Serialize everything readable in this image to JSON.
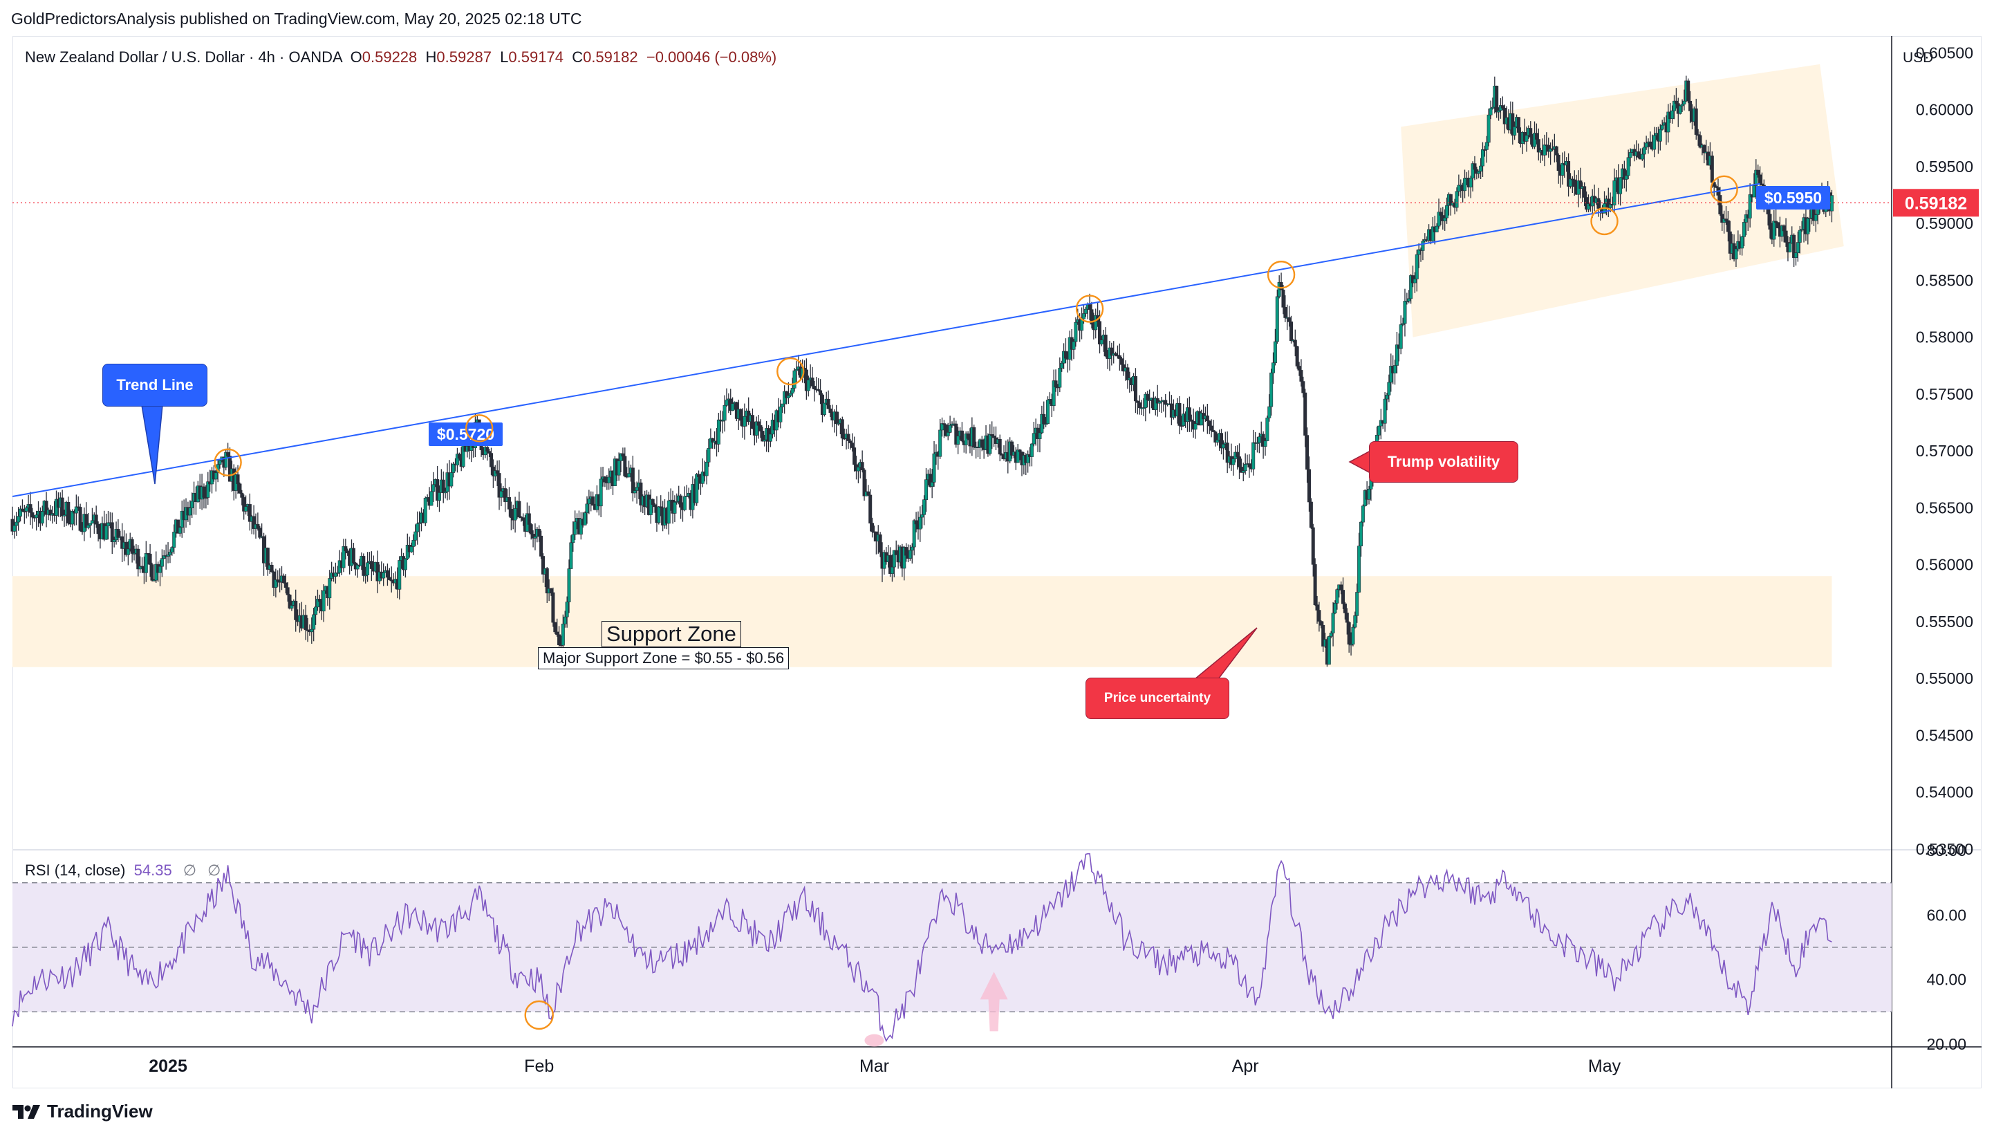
{
  "publisher": "GoldPredictorsAnalysis published on TradingView.com, May 20, 2025 02:18 UTC",
  "symbol": {
    "name": "New Zealand Dollar / U.S. Dollar · 4h · OANDA",
    "open_label": "O",
    "open": "0.59228",
    "high_label": "H",
    "high": "0.59287",
    "low_label": "L",
    "low": "0.59174",
    "close_label": "C",
    "close": "0.59182",
    "change": "−0.00046 (−0.08%)"
  },
  "currency": "USD",
  "branding": "TradingView",
  "colors": {
    "up": "#089981",
    "down": "#f23645",
    "candle_wick": "#2a2e39",
    "trend_line": "#2962ff",
    "rsi_line": "#7e57c2",
    "rsi_band": "#ede7f6",
    "zone_fill": "#fff3e0",
    "price_tag": "#f23645",
    "callout_blue": "#2962ff",
    "callout_red": "#f23645",
    "circle": "#f7931a"
  },
  "chart_data": [
    {
      "type": "candlestick",
      "timeframe": "4h",
      "y_axis": {
        "ylim": [
          0.535,
          0.606
        ],
        "ticks": [
          "0.60500",
          "0.60000",
          "0.59500",
          "0.59000",
          "0.58500",
          "0.58000",
          "0.57500",
          "0.57000",
          "0.56500",
          "0.56000",
          "0.55500",
          "0.55000",
          "0.54500",
          "0.54000",
          "0.53500"
        ],
        "tick_values": [
          0.605,
          0.6,
          0.595,
          0.59,
          0.585,
          0.58,
          0.575,
          0.57,
          0.565,
          0.56,
          0.555,
          0.55,
          0.545,
          0.54,
          0.535
        ]
      },
      "x_axis": {
        "range": [
          "2024-12-19",
          "2025-05-25"
        ],
        "ticks": [
          "2025",
          "Feb",
          "Mar",
          "Apr",
          "May"
        ],
        "tick_dates": [
          "2025-01-01",
          "2025-02-01",
          "2025-03-01",
          "2025-04-01",
          "2025-05-01"
        ]
      },
      "price_path": [
        {
          "date": "2024-12-19",
          "price": 0.564
        },
        {
          "date": "2024-12-23",
          "price": 0.565
        },
        {
          "date": "2024-12-27",
          "price": 0.563
        },
        {
          "date": "2024-12-31",
          "price": 0.5595
        },
        {
          "date": "2025-01-03",
          "price": 0.565
        },
        {
          "date": "2025-01-06",
          "price": 0.569
        },
        {
          "date": "2025-01-08",
          "price": 0.564
        },
        {
          "date": "2025-01-10",
          "price": 0.559
        },
        {
          "date": "2025-01-13",
          "price": 0.5545
        },
        {
          "date": "2025-01-16",
          "price": 0.561
        },
        {
          "date": "2025-01-20",
          "price": 0.558
        },
        {
          "date": "2025-01-23",
          "price": 0.566
        },
        {
          "date": "2025-01-25",
          "price": 0.568
        },
        {
          "date": "2025-01-27",
          "price": 0.572
        },
        {
          "date": "2025-01-29",
          "price": 0.566
        },
        {
          "date": "2025-01-31",
          "price": 0.564
        },
        {
          "date": "2025-02-01",
          "price": 0.563
        },
        {
          "date": "2025-02-03",
          "price": 0.552
        },
        {
          "date": "2025-02-04",
          "price": 0.563
        },
        {
          "date": "2025-02-06",
          "price": 0.566
        },
        {
          "date": "2025-02-08",
          "price": 0.569
        },
        {
          "date": "2025-02-11",
          "price": 0.564
        },
        {
          "date": "2025-02-14",
          "price": 0.566
        },
        {
          "date": "2025-02-17",
          "price": 0.5745
        },
        {
          "date": "2025-02-20",
          "price": 0.571
        },
        {
          "date": "2025-02-23",
          "price": 0.577
        },
        {
          "date": "2025-02-26",
          "price": 0.5725
        },
        {
          "date": "2025-02-28",
          "price": 0.568
        },
        {
          "date": "2025-03-02",
          "price": 0.56
        },
        {
          "date": "2025-03-04",
          "price": 0.561
        },
        {
          "date": "2025-03-07",
          "price": 0.572
        },
        {
          "date": "2025-03-11",
          "price": 0.5705
        },
        {
          "date": "2025-03-14",
          "price": 0.569
        },
        {
          "date": "2025-03-17",
          "price": 0.578
        },
        {
          "date": "2025-03-19",
          "price": 0.5825
        },
        {
          "date": "2025-03-21",
          "price": 0.578
        },
        {
          "date": "2025-03-24",
          "price": 0.574
        },
        {
          "date": "2025-03-27",
          "price": 0.573
        },
        {
          "date": "2025-03-29",
          "price": 0.5725
        },
        {
          "date": "2025-04-01",
          "price": 0.568
        },
        {
          "date": "2025-04-03",
          "price": 0.572
        },
        {
          "date": "2025-04-04",
          "price": 0.585
        },
        {
          "date": "2025-04-06",
          "price": 0.575
        },
        {
          "date": "2025-04-07",
          "price": 0.556
        },
        {
          "date": "2025-04-08",
          "price": 0.552
        },
        {
          "date": "2025-04-09",
          "price": 0.559
        },
        {
          "date": "2025-04-10",
          "price": 0.552
        },
        {
          "date": "2025-04-11",
          "price": 0.565
        },
        {
          "date": "2025-04-13",
          "price": 0.575
        },
        {
          "date": "2025-04-15",
          "price": 0.585
        },
        {
          "date": "2025-04-17",
          "price": 0.59
        },
        {
          "date": "2025-04-19",
          "price": 0.593
        },
        {
          "date": "2025-04-21",
          "price": 0.596
        },
        {
          "date": "2025-04-22",
          "price": 0.601
        },
        {
          "date": "2025-04-24",
          "price": 0.598
        },
        {
          "date": "2025-04-27",
          "price": 0.596
        },
        {
          "date": "2025-04-29",
          "price": 0.593
        },
        {
          "date": "2025-05-01",
          "price": 0.5905
        },
        {
          "date": "2025-05-03",
          "price": 0.595
        },
        {
          "date": "2025-05-06",
          "price": 0.5985
        },
        {
          "date": "2025-05-08",
          "price": 0.6015
        },
        {
          "date": "2025-05-10",
          "price": 0.595
        },
        {
          "date": "2025-05-12",
          "price": 0.587
        },
        {
          "date": "2025-05-13",
          "price": 0.59
        },
        {
          "date": "2025-05-14",
          "price": 0.595
        },
        {
          "date": "2025-05-15",
          "price": 0.5895
        },
        {
          "date": "2025-05-17",
          "price": 0.588
        },
        {
          "date": "2025-05-19",
          "price": 0.592
        },
        {
          "date": "2025-05-20",
          "price": 0.5918
        }
      ],
      "current_price": {
        "value": 0.59182,
        "label": "0.59182"
      },
      "trend_line": {
        "start": {
          "date": "2024-12-19",
          "price": 0.566
        },
        "end": {
          "date": "2025-05-14",
          "price": 0.5935
        },
        "tag": "$0.5950",
        "tag2": "$0.5720"
      },
      "support_zone": {
        "from": 0.551,
        "to": 0.559,
        "start_date": "2024-12-19",
        "end_date": "2025-05-20",
        "title": "Support Zone",
        "label": "Major Support Zone = $0.55 - $0.56"
      },
      "channel": {
        "polygon": [
          {
            "date": "2025-04-14",
            "price": 0.5985
          },
          {
            "date": "2025-05-19",
            "price": 0.604
          },
          {
            "date": "2025-05-21",
            "price": 0.588
          },
          {
            "date": "2025-04-15",
            "price": 0.58
          }
        ]
      },
      "touch_circles": [
        {
          "date": "2025-01-06",
          "price": 0.569
        },
        {
          "date": "2025-01-27",
          "price": 0.572
        },
        {
          "date": "2025-02-22",
          "price": 0.577
        },
        {
          "date": "2025-03-19",
          "price": 0.5825
        },
        {
          "date": "2025-04-04",
          "price": 0.5855
        },
        {
          "date": "2025-05-01",
          "price": 0.5902
        },
        {
          "date": "2025-05-11",
          "price": 0.593
        }
      ],
      "annotations": [
        {
          "text": "Trend Line",
          "color": "blue",
          "date": "2025-01-04",
          "price": 0.568
        },
        {
          "text": "Trump volatility",
          "color": "red",
          "date": "2025-04-12",
          "price": 0.57
        },
        {
          "text": "Price uncertainty",
          "color": "red",
          "date": "2025-04-07",
          "price": 0.555
        }
      ]
    },
    {
      "type": "line",
      "title": "RSI (14, close)",
      "value_label": "54.35",
      "extra_labels": [
        "∅",
        "∅"
      ],
      "ylim": [
        20,
        80
      ],
      "ticks": [
        "80.00",
        "60.00",
        "40.00",
        "20.00"
      ],
      "tick_values": [
        80,
        60,
        40,
        20
      ],
      "band": {
        "upper": 70,
        "middle": 50,
        "lower": 30
      },
      "series": [
        {
          "date": "2024-12-19",
          "value": 30
        },
        {
          "date": "2024-12-21",
          "value": 40
        },
        {
          "date": "2024-12-24",
          "value": 42
        },
        {
          "date": "2024-12-27",
          "value": 55
        },
        {
          "date": "2024-12-30",
          "value": 38
        },
        {
          "date": "2025-01-01",
          "value": 45
        },
        {
          "date": "2025-01-03",
          "value": 55
        },
        {
          "date": "2025-01-06",
          "value": 72
        },
        {
          "date": "2025-01-08",
          "value": 48
        },
        {
          "date": "2025-01-10",
          "value": 42
        },
        {
          "date": "2025-01-13",
          "value": 30
        },
        {
          "date": "2025-01-16",
          "value": 55
        },
        {
          "date": "2025-01-18",
          "value": 48
        },
        {
          "date": "2025-01-21",
          "value": 60
        },
        {
          "date": "2025-01-24",
          "value": 55
        },
        {
          "date": "2025-01-27",
          "value": 65
        },
        {
          "date": "2025-01-30",
          "value": 42
        },
        {
          "date": "2025-02-01",
          "value": 40
        },
        {
          "date": "2025-02-02",
          "value": 28
        },
        {
          "date": "2025-02-04",
          "value": 55
        },
        {
          "date": "2025-02-07",
          "value": 62
        },
        {
          "date": "2025-02-10",
          "value": 45
        },
        {
          "date": "2025-02-13",
          "value": 48
        },
        {
          "date": "2025-02-17",
          "value": 62
        },
        {
          "date": "2025-02-20",
          "value": 50
        },
        {
          "date": "2025-02-23",
          "value": 65
        },
        {
          "date": "2025-02-26",
          "value": 50
        },
        {
          "date": "2025-03-01",
          "value": 35
        },
        {
          "date": "2025-03-02",
          "value": 22
        },
        {
          "date": "2025-03-04",
          "value": 35
        },
        {
          "date": "2025-03-07",
          "value": 68
        },
        {
          "date": "2025-03-10",
          "value": 50
        },
        {
          "date": "2025-03-13",
          "value": 52
        },
        {
          "date": "2025-03-16",
          "value": 62
        },
        {
          "date": "2025-03-19",
          "value": 78
        },
        {
          "date": "2025-03-22",
          "value": 52
        },
        {
          "date": "2025-03-25",
          "value": 45
        },
        {
          "date": "2025-03-28",
          "value": 48
        },
        {
          "date": "2025-03-31",
          "value": 45
        },
        {
          "date": "2025-04-02",
          "value": 32
        },
        {
          "date": "2025-04-04",
          "value": 78
        },
        {
          "date": "2025-04-06",
          "value": 45
        },
        {
          "date": "2025-04-08",
          "value": 30
        },
        {
          "date": "2025-04-10",
          "value": 38
        },
        {
          "date": "2025-04-12",
          "value": 52
        },
        {
          "date": "2025-04-15",
          "value": 68
        },
        {
          "date": "2025-04-18",
          "value": 72
        },
        {
          "date": "2025-04-21",
          "value": 65
        },
        {
          "date": "2025-04-23",
          "value": 72
        },
        {
          "date": "2025-04-26",
          "value": 55
        },
        {
          "date": "2025-04-29",
          "value": 48
        },
        {
          "date": "2025-05-02",
          "value": 40
        },
        {
          "date": "2025-05-05",
          "value": 55
        },
        {
          "date": "2025-05-08",
          "value": 65
        },
        {
          "date": "2025-05-11",
          "value": 42
        },
        {
          "date": "2025-05-13",
          "value": 32
        },
        {
          "date": "2025-05-15",
          "value": 62
        },
        {
          "date": "2025-05-17",
          "value": 45
        },
        {
          "date": "2025-05-19",
          "value": 60
        },
        {
          "date": "2025-05-20",
          "value": 54.35
        }
      ],
      "circles": [
        {
          "date": "2025-02-01",
          "value": 29
        }
      ],
      "oversold_marks": [
        {
          "date": "2025-03-01",
          "value": 22
        }
      ],
      "arrows": [
        {
          "date": "2025-03-11",
          "value": 24
        }
      ]
    }
  ]
}
